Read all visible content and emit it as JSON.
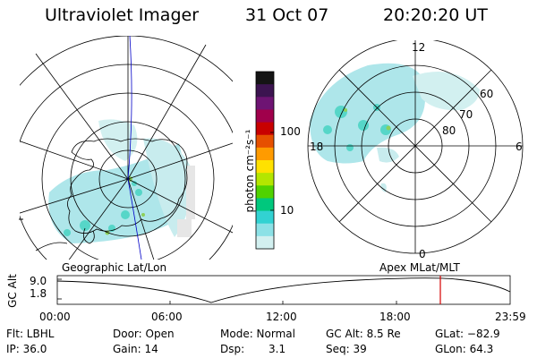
{
  "header": {
    "title": "Ultraviolet Imager",
    "date": "31 Oct 07",
    "time": "20:20:20 UT"
  },
  "colorbar": {
    "label": "photon cm⁻²s⁻¹",
    "ticks": [
      "100",
      "10"
    ],
    "colors": [
      "#141414",
      "#3c1450",
      "#6e1473",
      "#a0004b",
      "#c80000",
      "#e65000",
      "#ff9b00",
      "#ffe100",
      "#b4e600",
      "#50d200",
      "#00c87d",
      "#32d2d2",
      "#8ce1e6",
      "#d2f0f0"
    ]
  },
  "geo_panel": {
    "label": "Geographic Lat/Lon"
  },
  "mag_panel": {
    "label": "Apex MLat/MLT",
    "mlt_labels": {
      "top": "12",
      "left": "18",
      "right": "6",
      "bottom": "0"
    },
    "lat_labels": [
      "80",
      "70",
      "60"
    ]
  },
  "timeline": {
    "ylabel": "GC Alt",
    "y_ticks": [
      "9.0",
      "1.8"
    ],
    "x_ticks": [
      "00:00",
      "06:00",
      "12:00",
      "18:00",
      "23:59"
    ],
    "marker_color": "#d40000"
  },
  "info": {
    "row1": {
      "flt": "Flt: LBHL",
      "door": "Door: Open",
      "mode": "Mode:  Normal",
      "gc_alt": "GC Alt:  8.5 Re",
      "glat": "GLat:  −82.9"
    },
    "row2": {
      "ip": "IP: 36.0",
      "gain": "Gain: 14",
      "dsp_label": "Dsp:",
      "dsp_value": "3.1",
      "seq": "Seq: 39",
      "glon": "GLon:  64.3"
    }
  }
}
